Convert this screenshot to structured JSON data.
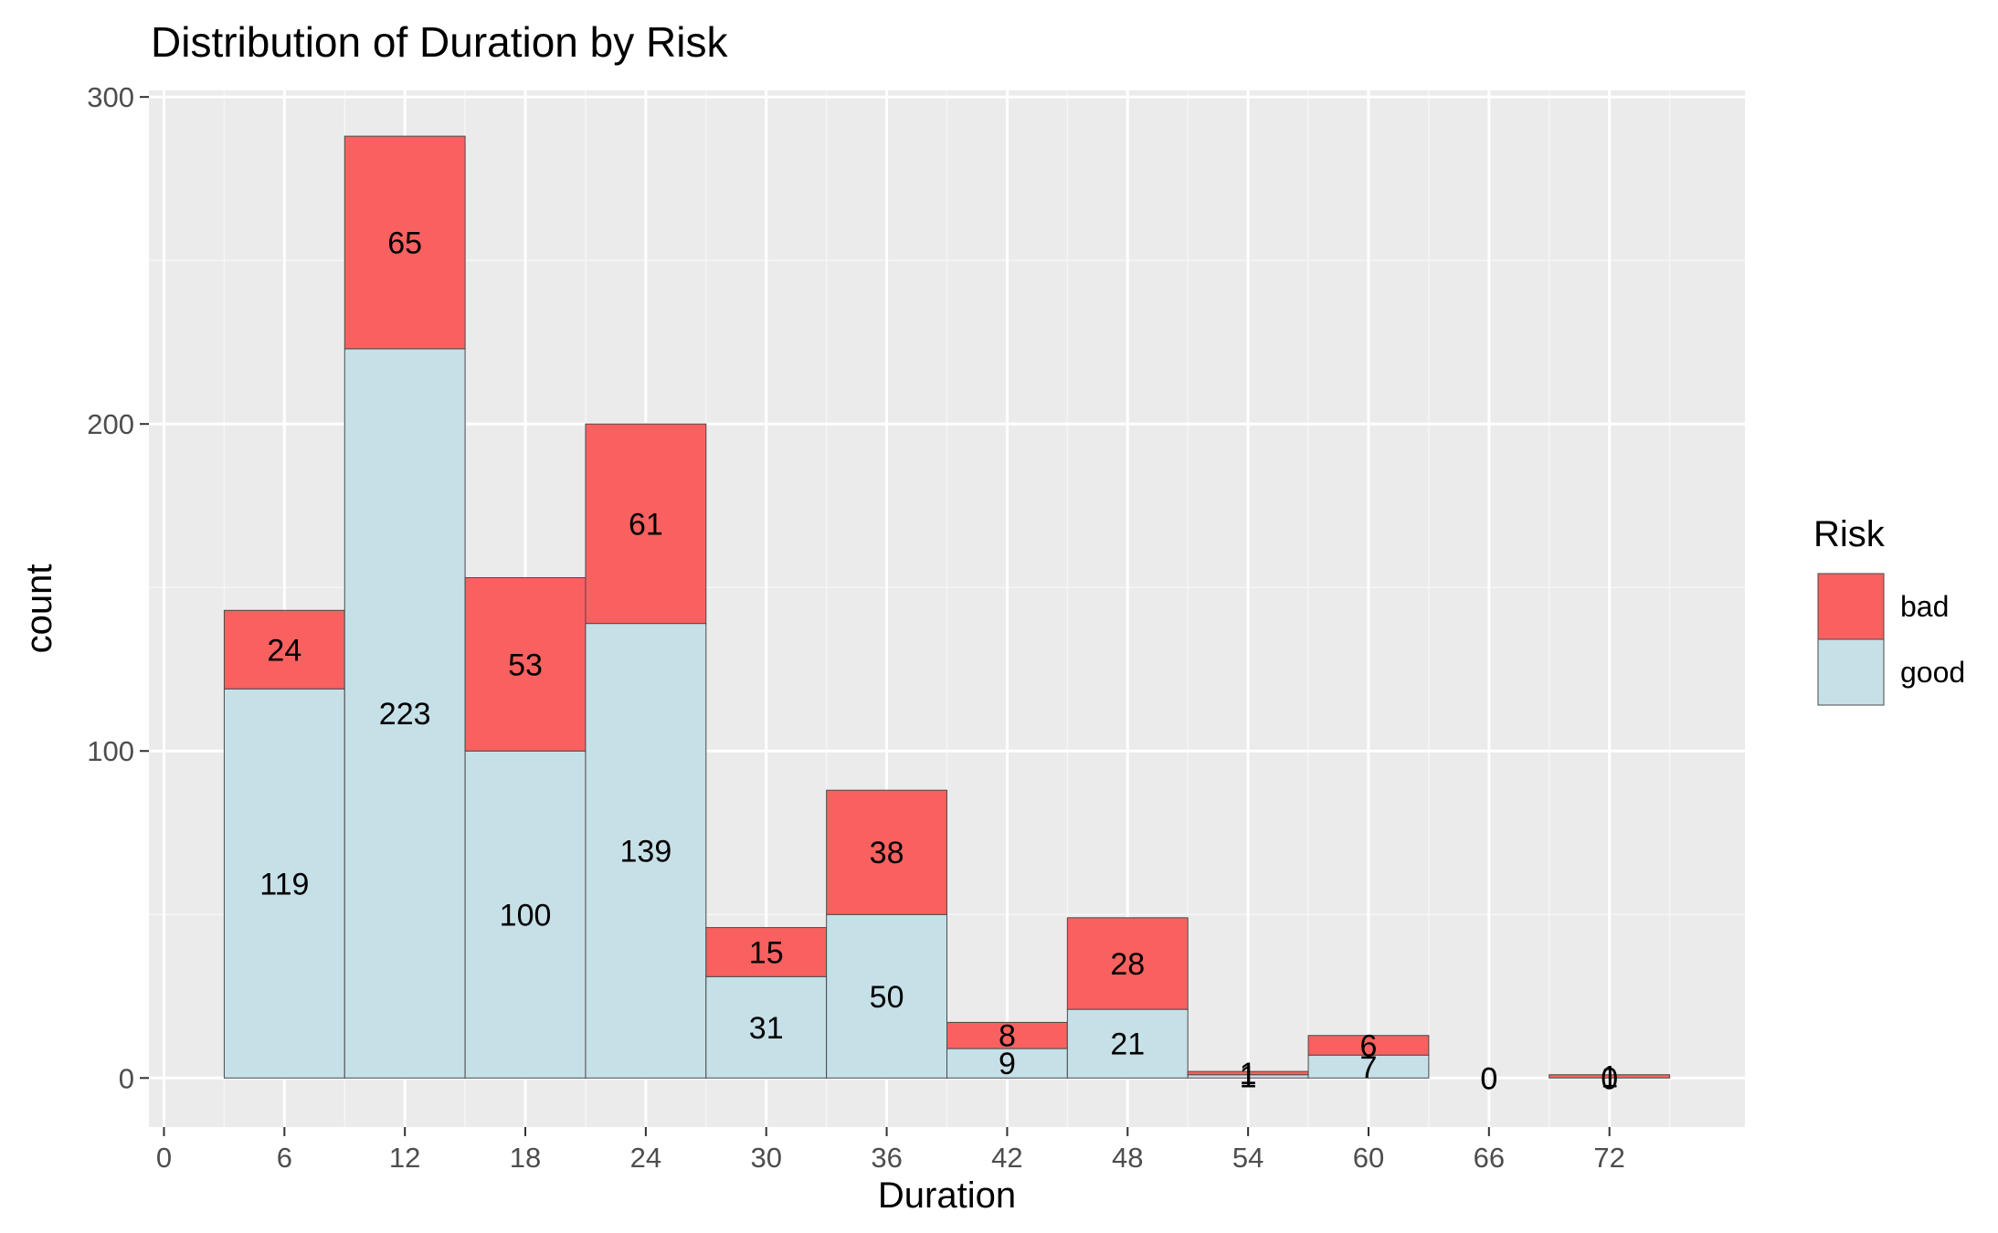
{
  "chart_data": {
    "type": "bar",
    "stacked": true,
    "title": "Distribution of Duration by Risk",
    "xlabel": "Duration",
    "ylabel": "count",
    "x_centers": [
      6,
      12,
      18,
      24,
      30,
      36,
      42,
      48,
      54,
      60,
      66,
      72
    ],
    "bin_width": 6,
    "xlim": [
      -0.75,
      78.75
    ],
    "ylim": [
      -15,
      302
    ],
    "x_ticks": [
      "0",
      "6",
      "12",
      "18",
      "24",
      "30",
      "36",
      "42",
      "48",
      "54",
      "60",
      "66",
      "72"
    ],
    "y_ticks": [
      "0",
      "100",
      "200",
      "300"
    ],
    "grid": true,
    "legend": {
      "title": "Risk",
      "position": "right"
    },
    "series": [
      {
        "name": "good",
        "color": "#c6e0e8",
        "values": [
          119,
          223,
          100,
          139,
          31,
          50,
          9,
          21,
          1,
          7,
          0,
          0
        ]
      },
      {
        "name": "bad",
        "color": "#f8615f",
        "values": [
          24,
          65,
          53,
          61,
          15,
          38,
          8,
          28,
          1,
          6,
          0,
          1
        ]
      }
    ],
    "legend_order": [
      "bad",
      "good"
    ]
  }
}
